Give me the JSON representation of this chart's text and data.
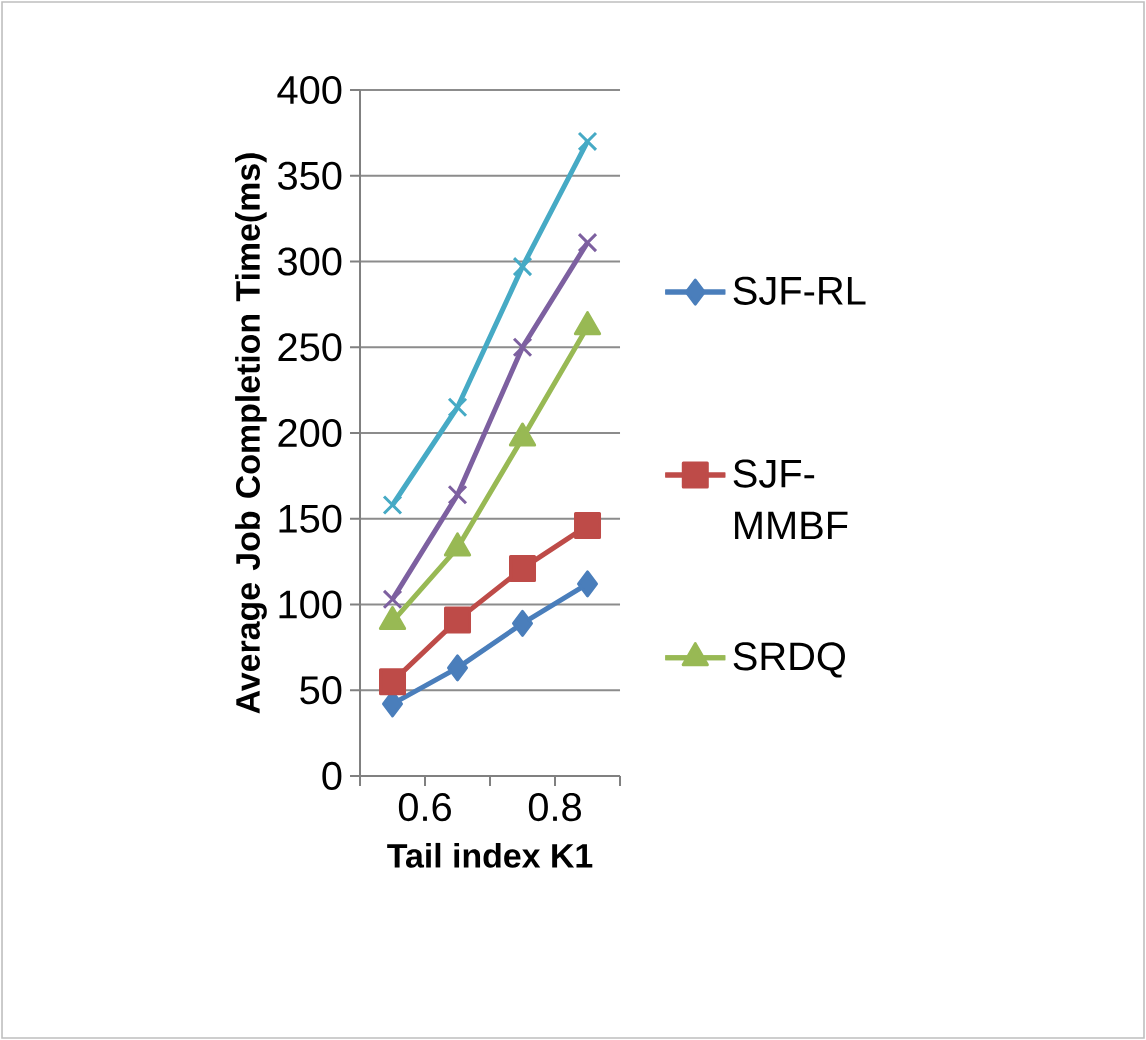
{
  "chart_data": {
    "type": "line",
    "xlabel": "Tail index K1",
    "ylabel": "Average Job Completion Time(ms)",
    "xlim": [
      0.5,
      0.9
    ],
    "xticks": [
      {
        "value": 0.5,
        "label": null
      },
      0.6,
      {
        "value": 0.7,
        "label": null
      },
      0.8,
      {
        "value": 0.9,
        "label": null
      }
    ],
    "ylim": [
      0,
      400
    ],
    "yticks": [
      0,
      50,
      100,
      150,
      200,
      250,
      300,
      350,
      400
    ],
    "grid": "y",
    "legend": "right",
    "series": [
      {
        "name": "SJF-RL",
        "color": "#4a7ebb",
        "marker": "diamond",
        "x": [
          0.55,
          0.65,
          0.75,
          0.85
        ],
        "values": [
          42,
          63,
          89,
          112
        ]
      },
      {
        "name": "SJF-MMBF",
        "color": "#be4b48",
        "marker": "square",
        "x": [
          0.55,
          0.65,
          0.75,
          0.85
        ],
        "values": [
          55,
          91,
          121,
          146
        ]
      },
      {
        "name": "SRDQ",
        "color": "#98b954",
        "marker": "triangle",
        "x": [
          0.55,
          0.65,
          0.75,
          0.85
        ],
        "values": [
          90,
          133,
          197,
          262
        ]
      },
      {
        "color": "#7d60a0",
        "marker": "cross",
        "x": [
          0.55,
          0.65,
          0.75,
          0.85
        ],
        "values": [
          103,
          164,
          250,
          311
        ]
      },
      {
        "color": "#46aac5",
        "marker": "cross",
        "x": [
          0.55,
          0.65,
          0.75,
          0.85
        ],
        "values": [
          158,
          215,
          297,
          370
        ]
      }
    ]
  }
}
